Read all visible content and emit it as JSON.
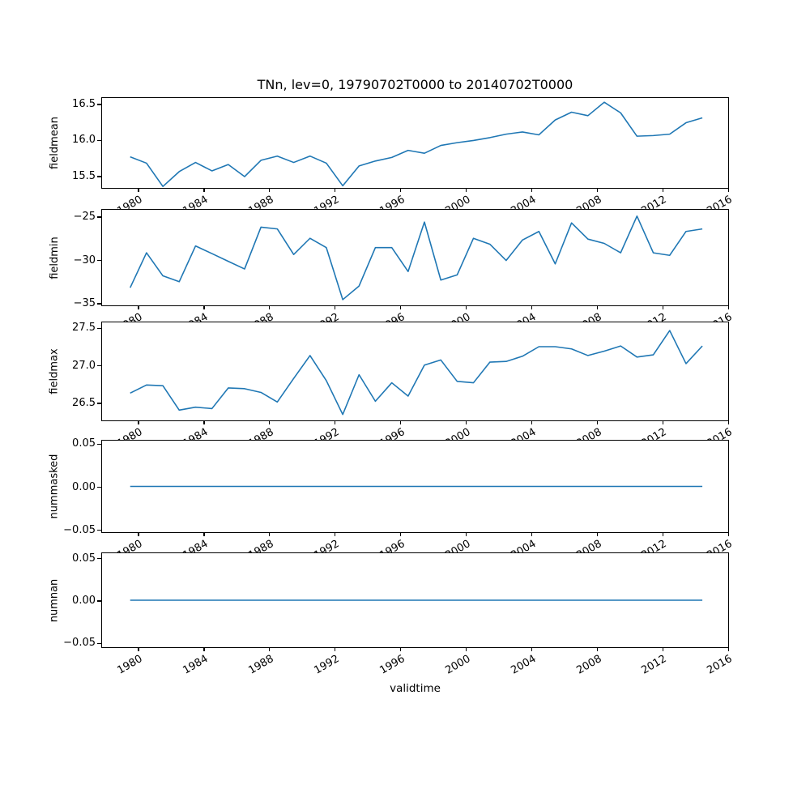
{
  "figure": {
    "title": "TNn, lev=0, 19790702T0000 to 20140702T0000",
    "x_axis_label": "validtime",
    "line_color": "#1f77b4",
    "background_color": "#ffffff",
    "text_color": "#000000"
  },
  "x_axis": {
    "label": "validtime",
    "tick_labels": [
      "1980",
      "1984",
      "1988",
      "1992",
      "1996",
      "2000",
      "2004",
      "2008",
      "2012",
      "2016"
    ],
    "tick_values": [
      1980,
      1984,
      1988,
      1992,
      1996,
      2000,
      2004,
      2008,
      2012,
      2016
    ],
    "xlim": [
      1977.78,
      2016.08
    ],
    "sample_years": [
      1979,
      1980,
      1981,
      1982,
      1983,
      1984,
      1985,
      1986,
      1987,
      1988,
      1989,
      1990,
      1991,
      1992,
      1993,
      1994,
      1995,
      1996,
      1997,
      1998,
      1999,
      2000,
      2001,
      2002,
      2003,
      2004,
      2005,
      2006,
      2007,
      2008,
      2009,
      2010,
      2011,
      2012,
      2013,
      2014
    ],
    "sample_offset_years": 0.5
  },
  "chart_data": [
    {
      "type": "line",
      "ylabel": "fieldmean",
      "values": [
        15.76,
        15.67,
        15.34,
        15.55,
        15.68,
        15.56,
        15.65,
        15.48,
        15.71,
        15.77,
        15.68,
        15.77,
        15.67,
        15.35,
        15.63,
        15.7,
        15.75,
        15.85,
        15.81,
        15.92,
        15.96,
        15.99,
        16.03,
        16.08,
        16.11,
        16.07,
        16.28,
        16.39,
        16.34,
        16.53,
        16.38,
        16.05,
        16.06,
        16.08,
        16.24,
        16.31
      ],
      "ylim": [
        15.32,
        16.59
      ],
      "ytick_values": [
        15.5,
        16.0,
        16.5
      ],
      "ytick_labels": [
        "15.5",
        "16.0",
        "16.5"
      ]
    },
    {
      "type": "line",
      "ylabel": "fieldmin",
      "values": [
        -33.3,
        -29.2,
        -31.9,
        -32.6,
        -28.4,
        -29.3,
        -30.2,
        -31.1,
        -26.2,
        -26.4,
        -29.4,
        -27.5,
        -28.6,
        -34.7,
        -33.1,
        -28.6,
        -28.6,
        -31.4,
        -25.6,
        -32.4,
        -31.8,
        -27.5,
        -28.2,
        -30.1,
        -27.7,
        -26.7,
        -30.5,
        -25.7,
        -27.6,
        -28.1,
        -29.2,
        -24.9,
        -29.2,
        -29.5,
        -26.7,
        -26.4
      ],
      "ylim": [
        -35.37,
        -24.16
      ],
      "ytick_values": [
        -35,
        -30,
        -25
      ],
      "ytick_labels": [
        "−35",
        "−30",
        "−25"
      ]
    },
    {
      "type": "line",
      "ylabel": "fieldmax",
      "values": [
        26.62,
        26.73,
        26.72,
        26.39,
        26.43,
        26.41,
        26.69,
        26.68,
        26.63,
        26.5,
        26.82,
        27.13,
        26.79,
        26.33,
        26.87,
        26.51,
        26.76,
        26.58,
        27.0,
        27.07,
        26.78,
        26.76,
        27.04,
        27.05,
        27.12,
        27.25,
        27.25,
        27.22,
        27.13,
        27.19,
        27.26,
        27.11,
        27.14,
        27.47,
        27.02,
        27.26
      ],
      "ylim": [
        26.25,
        27.58
      ],
      "ytick_values": [
        26.5,
        27.0,
        27.5
      ],
      "ytick_labels": [
        "26.5",
        "27.0",
        "27.5"
      ]
    },
    {
      "type": "line",
      "ylabel": "nummasked",
      "values": [
        0,
        0,
        0,
        0,
        0,
        0,
        0,
        0,
        0,
        0,
        0,
        0,
        0,
        0,
        0,
        0,
        0,
        0,
        0,
        0,
        0,
        0,
        0,
        0,
        0,
        0,
        0,
        0,
        0,
        0,
        0,
        0,
        0,
        0,
        0,
        0
      ],
      "ylim": [
        -0.0542,
        0.0542
      ],
      "ytick_values": [
        -0.05,
        0.0,
        0.05
      ],
      "ytick_labels": [
        "−0.05",
        "0.00",
        "0.05"
      ]
    },
    {
      "type": "line",
      "ylabel": "numnan",
      "values": [
        0,
        0,
        0,
        0,
        0,
        0,
        0,
        0,
        0,
        0,
        0,
        0,
        0,
        0,
        0,
        0,
        0,
        0,
        0,
        0,
        0,
        0,
        0,
        0,
        0,
        0,
        0,
        0,
        0,
        0,
        0,
        0,
        0,
        0,
        0,
        0
      ],
      "ylim": [
        -0.0565,
        0.0565
      ],
      "ytick_values": [
        -0.05,
        0.0,
        0.05
      ],
      "ytick_labels": [
        "−0.05",
        "0.00",
        "0.05"
      ]
    }
  ]
}
